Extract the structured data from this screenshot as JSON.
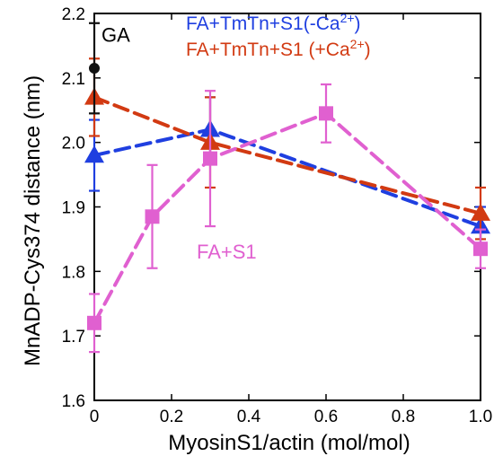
{
  "chart_data": {
    "type": "line",
    "xlabel": "MyosinS1/actin (mol/mol)",
    "ylabel": "MnADP-Cys374 distance (nm)",
    "xlim": [
      0,
      1.0
    ],
    "ylim": [
      1.6,
      2.2
    ],
    "xticks": [
      "0",
      "0.2",
      "0.4",
      "0.6",
      "0.8",
      "1.0"
    ],
    "yticks": [
      "1.6",
      "1.7",
      "1.8",
      "1.9",
      "2.0",
      "2.1",
      "2.2"
    ],
    "grid": false,
    "legend_position": "top-right",
    "series": [
      {
        "name": "FA+TmTn+S1(-Ca2+)",
        "color": "#1f3fe0",
        "marker": "triangle",
        "line": "dashed",
        "x": [
          0,
          0.3,
          1.0
        ],
        "y": [
          1.98,
          2.02,
          1.87
        ],
        "err": [
          0.055,
          0.05,
          0.03
        ]
      },
      {
        "name": "FA+TmTn+S1 (+Ca2+)",
        "color": "#d23a12",
        "marker": "triangle",
        "line": "dashed",
        "x": [
          0,
          0.3,
          1.0
        ],
        "y": [
          2.07,
          2.0,
          1.89
        ],
        "err": [
          0.06,
          0.07,
          0.04
        ]
      },
      {
        "name": "FA+S1",
        "color": "#e060d0",
        "marker": "square",
        "line": "dashed",
        "x": [
          0,
          0.15,
          0.3,
          0.6,
          1.0
        ],
        "y": [
          1.72,
          1.885,
          1.975,
          2.045,
          1.835
        ],
        "err": [
          0.045,
          0.08,
          0.105,
          0.045,
          0.03
        ]
      }
    ],
    "reference": {
      "name": "GA",
      "x": 0,
      "y": 2.115,
      "err": 0.07,
      "color": "#111111"
    }
  }
}
